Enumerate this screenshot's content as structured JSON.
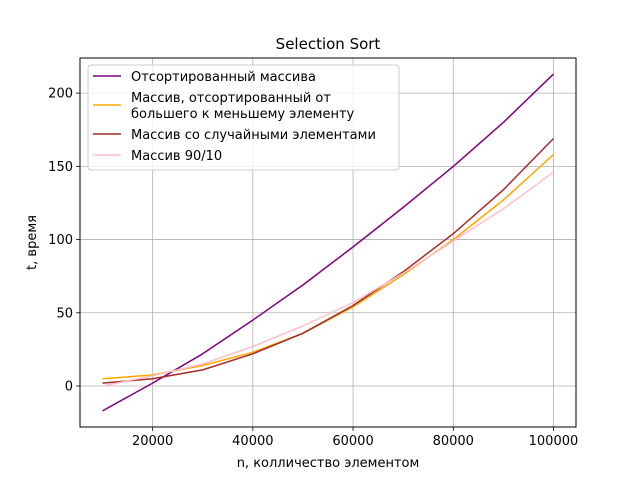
{
  "chart_data": {
    "type": "line",
    "title": "Selection Sort",
    "xlabel": "n, колличество элементом",
    "ylabel": "t, время",
    "xlim": [
      5500,
      104500
    ],
    "ylim": [
      -28,
      224
    ],
    "xticks": [
      20000,
      40000,
      60000,
      80000,
      100000
    ],
    "yticks": [
      0,
      50,
      100,
      150,
      200
    ],
    "grid": true,
    "legend_position": "top-left",
    "x": [
      10000,
      20000,
      30000,
      40000,
      50000,
      60000,
      70000,
      80000,
      90000,
      100000
    ],
    "series": [
      {
        "name": "Отсортированный массива",
        "color": "#800080",
        "values": [
          -17,
          2,
          22,
          45,
          69,
          95,
          122,
          150,
          180,
          213
        ]
      },
      {
        "name": "Массив, отсортированный от\nбольшего к меньшему элементу",
        "color": "#ffa500",
        "values": [
          5,
          7.5,
          14,
          23,
          36,
          54,
          76,
          100,
          127,
          158
        ]
      },
      {
        "name": "Массив со случайными элементами",
        "color": "#a52a2a",
        "values": [
          2,
          5,
          11,
          22,
          36,
          55,
          78,
          104,
          134,
          169
        ]
      },
      {
        "name": "Массив 90/10",
        "color": "#ffc0cb",
        "values": [
          0,
          7,
          15,
          27,
          41,
          57,
          77,
          99,
          121,
          146
        ]
      }
    ]
  }
}
